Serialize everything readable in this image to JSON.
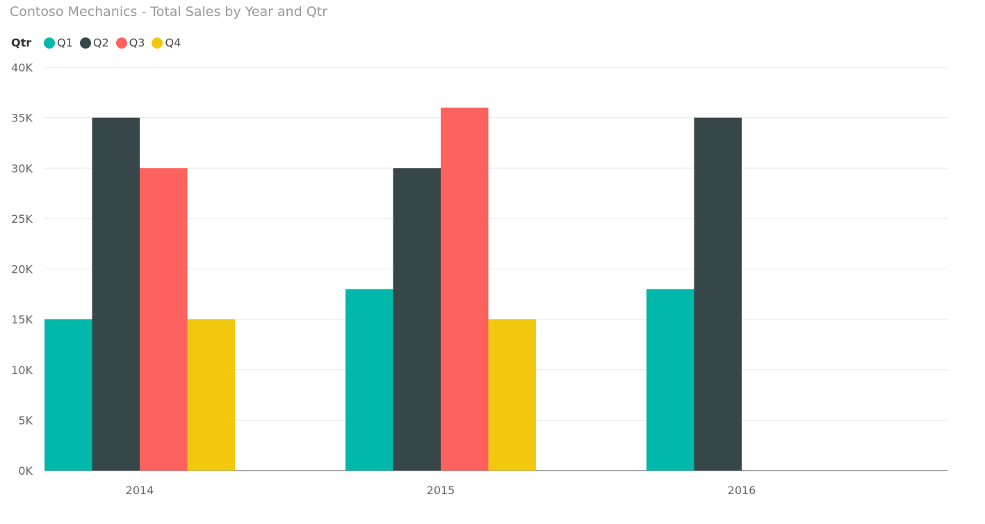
{
  "chart_data": {
    "type": "bar",
    "title": "Contoso Mechanics - Total Sales by Year and Qtr",
    "legend_title": "Qtr",
    "legend_position": "top-left",
    "categories": [
      "2014",
      "2015",
      "2016"
    ],
    "series": [
      {
        "name": "Q1",
        "color": "#01B8AA",
        "values": [
          15000,
          18000,
          18000
        ]
      },
      {
        "name": "Q2",
        "color": "#374649",
        "values": [
          35000,
          30000,
          35000
        ]
      },
      {
        "name": "Q3",
        "color": "#FD625E",
        "values": [
          30000,
          36000,
          null
        ]
      },
      {
        "name": "Q4",
        "color": "#F2C80F",
        "values": [
          15000,
          15000,
          null
        ]
      }
    ],
    "ylim": [
      0,
      40000
    ],
    "yticks": [
      0,
      5000,
      10000,
      15000,
      20000,
      25000,
      30000,
      35000,
      40000
    ],
    "ytick_labels": [
      "0K",
      "5K",
      "10K",
      "15K",
      "20K",
      "25K",
      "30K",
      "35K",
      "40K"
    ],
    "grid": true
  }
}
